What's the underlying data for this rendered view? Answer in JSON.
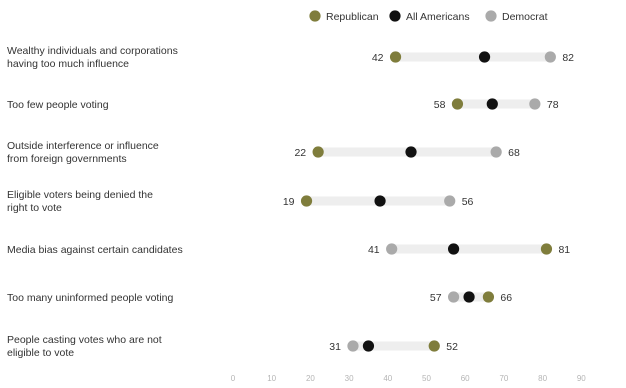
{
  "chart_data": {
    "type": "dot_plot",
    "title": "",
    "xlabel": "",
    "ylabel": "",
    "xlim": [
      0,
      100
    ],
    "x_ticks": [
      0,
      10,
      20,
      30,
      40,
      50,
      60,
      70,
      80,
      90
    ],
    "grid": false,
    "legend_position": "top-right",
    "categories": [
      [
        "Wealthy individuals and corporations",
        "having too much influence"
      ],
      [
        "Too few people voting"
      ],
      [
        "Outside interference or influence",
        "from foreign governments"
      ],
      [
        "Eligible voters being denied the",
        "right to vote"
      ],
      [
        "Media bias against certain candidates"
      ],
      [
        "Too many uninformed people voting"
      ],
      [
        "People casting votes who are not",
        "eligible to vote"
      ]
    ],
    "series": [
      {
        "name": "Republican",
        "color": "#7f7d3c",
        "values": [
          42,
          58,
          22,
          19,
          81,
          66,
          52
        ]
      },
      {
        "name": "All Americans",
        "color": "#111111",
        "values": [
          65,
          67,
          46,
          38,
          57,
          61,
          35
        ]
      },
      {
        "name": "Democrat",
        "color": "#aaaaaa",
        "values": [
          82,
          78,
          68,
          56,
          41,
          57,
          31
        ]
      }
    ],
    "range_bar_color": "#eeeeee"
  }
}
